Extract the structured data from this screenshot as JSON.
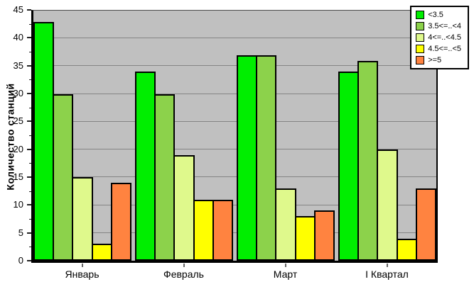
{
  "chart_data": {
    "type": "bar",
    "title": "",
    "xlabel": "",
    "ylabel": "Количество станций",
    "categories": [
      "Январь",
      "Февраль",
      "Март",
      "I Квартал"
    ],
    "series": [
      {
        "name": "<3.5",
        "color": "#00EE00",
        "values": [
          43,
          34,
          37,
          34
        ]
      },
      {
        "name": "3.5<=..<4",
        "color": "#8CD24B",
        "values": [
          30,
          30,
          37,
          36
        ]
      },
      {
        "name": "4<=..<4.5",
        "color": "#DFF98C",
        "values": [
          15,
          19,
          13,
          20
        ]
      },
      {
        "name": "4.5<=..<5",
        "color": "#FFFF00",
        "values": [
          3,
          11,
          8,
          4
        ]
      },
      {
        "name": ">=5",
        "color": "#FF8340",
        "values": [
          14,
          11,
          9,
          13
        ]
      }
    ],
    "ylim": [
      0,
      45
    ],
    "yticks": [
      0,
      5,
      10,
      15,
      20,
      25,
      30,
      35,
      40,
      45
    ],
    "ytick_minor_step": 2.5,
    "grid": true,
    "gridline_color": "#848484",
    "plot_bg_color": "#C0C0C0",
    "legend_position": "top-right"
  }
}
